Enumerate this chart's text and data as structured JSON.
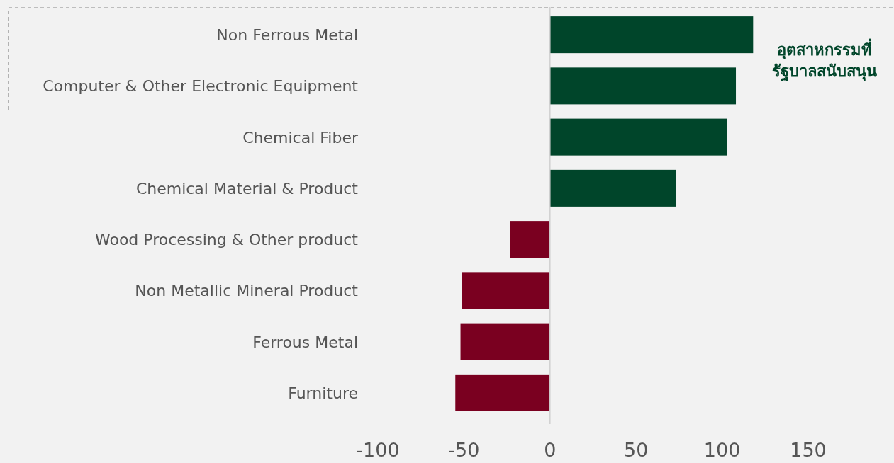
{
  "chart_data": {
    "type": "bar",
    "orientation": "horizontal",
    "categories": [
      "Non Ferrous Metal",
      "Computer & Other Electronic Equipment",
      "Chemical Fiber",
      "Chemical Material & Product",
      "Wood Processing & Other product",
      "Non Metallic Mineral Product",
      "Ferrous Metal",
      "Furniture"
    ],
    "values": [
      118,
      108,
      103,
      73,
      -23,
      -51,
      -52,
      -55
    ],
    "colors": [
      "#00452a",
      "#00452a",
      "#00452a",
      "#00452a",
      "#7a0020",
      "#7a0020",
      "#7a0020",
      "#7a0020"
    ],
    "xlim": [
      -100,
      150
    ],
    "xticks": [
      -100,
      -50,
      0,
      50,
      100,
      150
    ],
    "ref_lines": [
      {
        "axis": "x",
        "value": 0,
        "color": "#d0d0d0"
      }
    ],
    "annotations": [
      "อุตสาหกรรมที่\nรัฐบาลสนับสนุน"
    ]
  }
}
